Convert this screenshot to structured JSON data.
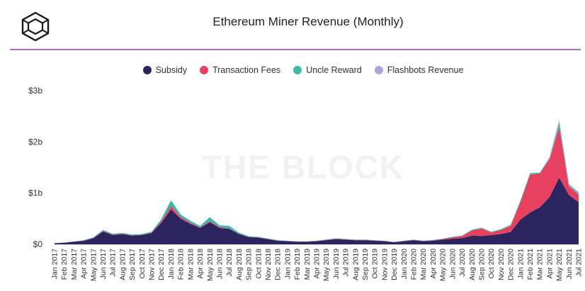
{
  "header": {
    "title": "Ethereum Miner Revenue (Monthly)",
    "watermark": "THE BLOCK"
  },
  "colors": {
    "subsidy": "#2b245e",
    "transaction_fees": "#e8405f",
    "uncle_reward": "#3bb8a9",
    "flashbots_revenue": "#b0a3da",
    "rule": "#b36fc4"
  },
  "chart_data": {
    "type": "area",
    "stacked": true,
    "title": "Ethereum Miner Revenue (Monthly)",
    "xlabel": "",
    "ylabel": "",
    "ylim": [
      0,
      3
    ],
    "y_unit": "billion USD",
    "y_ticks": [
      "$0",
      "$1b",
      "$2b",
      "$3b"
    ],
    "legend_position": "top",
    "grid": false,
    "categories": [
      "Jan 2017",
      "Feb 2017",
      "Mar 2017",
      "Apr 2017",
      "May 2017",
      "Jun 2017",
      "Jul 2017",
      "Aug 2017",
      "Sep 2017",
      "Oct 2017",
      "Nov 2017",
      "Dec 2017",
      "Jan 2018",
      "Feb 2018",
      "Mar 2018",
      "Apr 2018",
      "May 2018",
      "Jun 2018",
      "Jul 2018",
      "Aug 2018",
      "Sep 2018",
      "Oct 2018",
      "Nov 2018",
      "Dec 2018",
      "Jan 2019",
      "Feb 2019",
      "Mar 2019",
      "Apr 2019",
      "May 2019",
      "Jun 2019",
      "Jul 2019",
      "Aug 2019",
      "Sep 2019",
      "Oct 2019",
      "Nov 2019",
      "Dec 2019",
      "Jan 2020",
      "Feb 2020",
      "Mar 2020",
      "Apr 2020",
      "May 2020",
      "Jun 2020",
      "Jul 2020",
      "Aug 2020",
      "Sep 2020",
      "Oct 2020",
      "Nov 2020",
      "Dec 2020",
      "Jan 2021",
      "Feb 2021",
      "Mar 2021",
      "Apr 2021",
      "May 2021",
      "Jun 2021",
      "Jul 2021"
    ],
    "series": [
      {
        "name": "Subsidy",
        "color": "#2b245e",
        "values": [
          0.02,
          0.03,
          0.05,
          0.07,
          0.12,
          0.25,
          0.18,
          0.2,
          0.17,
          0.18,
          0.22,
          0.42,
          0.68,
          0.5,
          0.4,
          0.32,
          0.43,
          0.32,
          0.3,
          0.2,
          0.14,
          0.13,
          0.1,
          0.07,
          0.06,
          0.05,
          0.05,
          0.06,
          0.08,
          0.1,
          0.09,
          0.08,
          0.08,
          0.07,
          0.06,
          0.04,
          0.06,
          0.08,
          0.06,
          0.07,
          0.09,
          0.11,
          0.12,
          0.17,
          0.16,
          0.18,
          0.2,
          0.24,
          0.48,
          0.62,
          0.72,
          0.92,
          1.3,
          0.96,
          0.82
        ]
      },
      {
        "name": "Transaction Fees",
        "color": "#e8405f",
        "values": [
          0.001,
          0.001,
          0.001,
          0.002,
          0.004,
          0.01,
          0.01,
          0.006,
          0.006,
          0.006,
          0.007,
          0.03,
          0.07,
          0.03,
          0.02,
          0.01,
          0.02,
          0.015,
          0.01,
          0.006,
          0.005,
          0.004,
          0.004,
          0.003,
          0.003,
          0.003,
          0.003,
          0.005,
          0.006,
          0.008,
          0.006,
          0.004,
          0.004,
          0.004,
          0.003,
          0.002,
          0.004,
          0.005,
          0.005,
          0.008,
          0.012,
          0.025,
          0.04,
          0.1,
          0.15,
          0.05,
          0.08,
          0.12,
          0.34,
          0.74,
          0.66,
          0.74,
          0.98,
          0.17,
          0.15
        ]
      },
      {
        "name": "Uncle Reward",
        "color": "#3bb8a9",
        "values": [
          0.002,
          0.003,
          0.004,
          0.006,
          0.01,
          0.02,
          0.015,
          0.016,
          0.014,
          0.015,
          0.018,
          0.04,
          0.11,
          0.05,
          0.04,
          0.03,
          0.08,
          0.035,
          0.05,
          0.02,
          0.012,
          0.012,
          0.009,
          0.007,
          0.005,
          0.004,
          0.004,
          0.005,
          0.007,
          0.009,
          0.008,
          0.007,
          0.007,
          0.006,
          0.005,
          0.004,
          0.005,
          0.007,
          0.005,
          0.006,
          0.008,
          0.01,
          0.011,
          0.014,
          0.013,
          0.014,
          0.016,
          0.02,
          0.03,
          0.03,
          0.02,
          0.02,
          0.08,
          0.02,
          0.02
        ]
      },
      {
        "name": "Flashbots Revenue",
        "color": "#b0a3da",
        "values": [
          0,
          0,
          0,
          0,
          0,
          0,
          0,
          0,
          0,
          0,
          0,
          0,
          0,
          0,
          0,
          0,
          0,
          0,
          0,
          0,
          0,
          0,
          0,
          0,
          0,
          0,
          0,
          0,
          0,
          0,
          0,
          0,
          0,
          0,
          0,
          0,
          0,
          0,
          0,
          0,
          0,
          0,
          0,
          0,
          0,
          0,
          0,
          0,
          0,
          0,
          0,
          0.02,
          0.07,
          0.03,
          0.03
        ]
      }
    ]
  }
}
